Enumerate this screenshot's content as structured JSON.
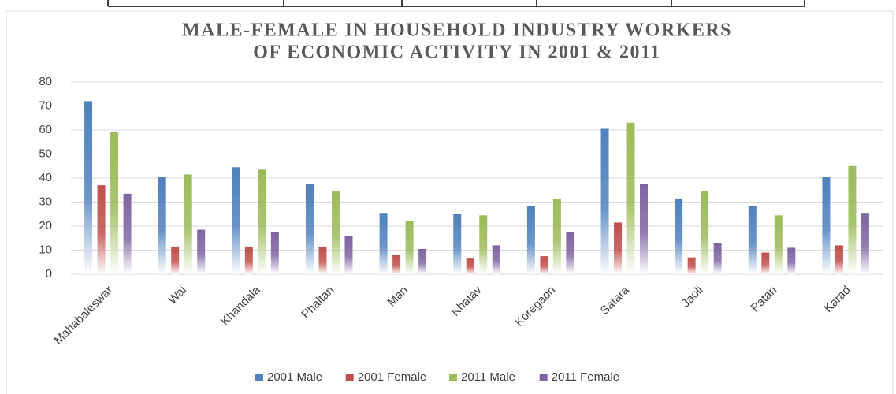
{
  "chart_data": {
    "type": "bar",
    "title": [
      "MALE-FEMALE IN HOUSEHOLD  INDUSTRY WORKERS",
      "OF ECONOMIC ACTIVITY IN 2001 & 2011"
    ],
    "categories": [
      "Mahabaleswar",
      "Wai",
      "Khandala",
      "Phaltan",
      "Man",
      "Khatav",
      "Koregaon",
      "Satara",
      "Jaoli",
      "Patan",
      "Karad"
    ],
    "series": [
      {
        "name": "2001 Male",
        "color": "#4f81bd",
        "values": [
          72,
          40.5,
          44.5,
          37.5,
          25.5,
          25,
          28.5,
          60.5,
          31.5,
          28.5,
          40.5
        ]
      },
      {
        "name": "2001 Female",
        "color": "#c0504d",
        "values": [
          37,
          11.5,
          11.5,
          11.5,
          8,
          6.5,
          7.5,
          21.5,
          7,
          9,
          12
        ]
      },
      {
        "name": "2011 Male",
        "color": "#9bbb59",
        "values": [
          59,
          41.5,
          43.5,
          34.5,
          22,
          24.5,
          31.5,
          63,
          34.5,
          24.5,
          45
        ]
      },
      {
        "name": "2011 Female",
        "color": "#8064a2",
        "values": [
          33.5,
          18.5,
          17.5,
          16,
          10.5,
          12,
          17.5,
          37.5,
          13,
          11,
          25.5
        ]
      }
    ],
    "ylim": [
      0,
      80
    ],
    "yticks": [
      0,
      10,
      20,
      30,
      40,
      50,
      60,
      70,
      80
    ],
    "grid": true,
    "legend": "bottom"
  }
}
